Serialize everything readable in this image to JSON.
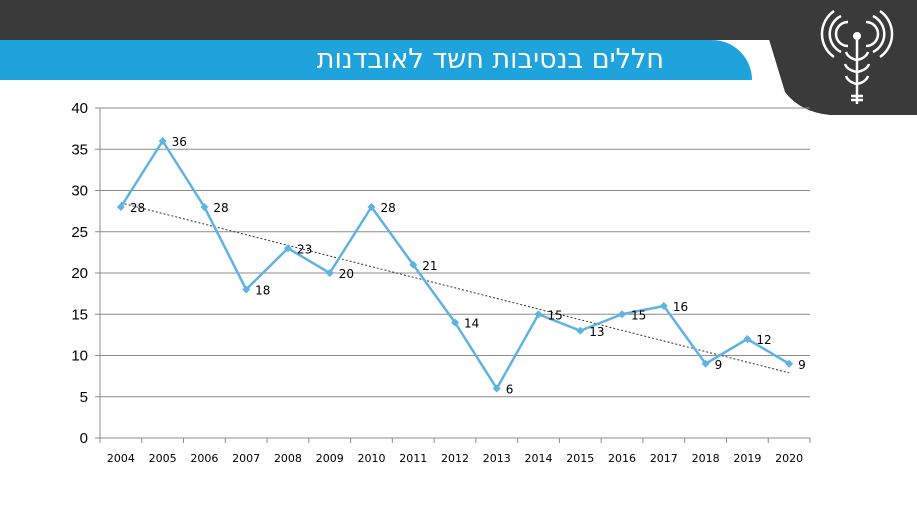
{
  "header": {
    "title": "חללים בנסיבות חשד לאובדנות",
    "bar_color": "#3a3a3a",
    "banner_color": "#1fa3dd",
    "logo_icon": "radio-broadcast-antenna-icon"
  },
  "chart_data": {
    "type": "line",
    "title": "",
    "xlabel": "",
    "ylabel": "",
    "categories": [
      "2004",
      "2005",
      "2006",
      "2007",
      "2008",
      "2009",
      "2010",
      "2011",
      "2012",
      "2013",
      "2014",
      "2015",
      "2016",
      "2017",
      "2018",
      "2019",
      "2020"
    ],
    "series": [
      {
        "values": [
          28,
          36,
          28,
          18,
          23,
          20,
          28,
          21,
          14,
          6,
          15,
          13,
          15,
          16,
          9,
          12,
          9
        ],
        "color": "#5fb3e3"
      }
    ],
    "trendline": {
      "type": "linear",
      "start": 28.5,
      "end": 7.9,
      "style": "dotted",
      "color": "#333333"
    },
    "ylim": [
      0,
      40
    ],
    "yticks": [
      0,
      5,
      10,
      15,
      20,
      25,
      30,
      35,
      40
    ],
    "grid": true,
    "legend": "none"
  }
}
